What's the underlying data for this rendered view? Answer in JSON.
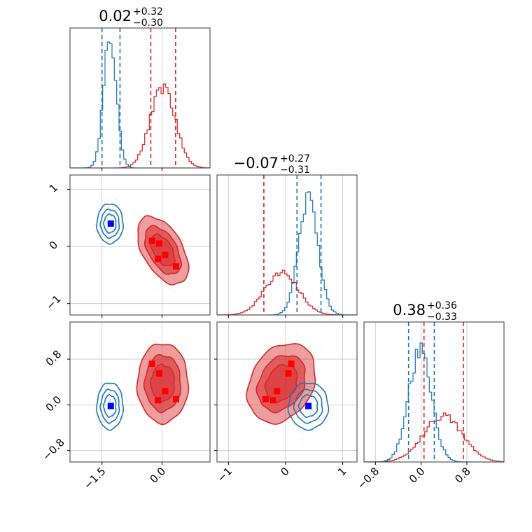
{
  "colors": {
    "series_a": "#d62728",
    "series_b": "#1f77b4",
    "marker_a": "#ff0000",
    "marker_b": "#0000ff"
  },
  "chart_data": {
    "type": "corner",
    "parameters": 3,
    "titles": [
      {
        "center": "0.02",
        "upper": "+0.32",
        "lower": "−0.30"
      },
      {
        "center": "−0.07",
        "upper": "+0.27",
        "lower": "−0.31"
      },
      {
        "center": "0.38",
        "upper": "+0.36",
        "lower": "−0.33"
      }
    ],
    "axes": [
      {
        "lim": [
          -2.3,
          1.2
        ],
        "ticks": [
          -1.5,
          0.0
        ],
        "tick_labels": [
          "−1.5",
          "0.0"
        ]
      },
      {
        "lim": [
          -1.2,
          1.25
        ],
        "ticks": [
          -1,
          0,
          1
        ],
        "tick_labels": [
          "−1",
          "0",
          "1"
        ]
      },
      {
        "lim": [
          -1.0,
          1.45
        ],
        "ticks": [
          -0.8,
          0.0,
          0.8
        ],
        "tick_labels": [
          "−0.8",
          "0.0",
          "0.8"
        ]
      }
    ],
    "grid": true,
    "series": [
      {
        "color": "#d62728",
        "means": [
          0.02,
          -0.07,
          0.38
        ],
        "stds": [
          0.31,
          0.29,
          0.34
        ],
        "quantile_lines": [
          [
            -0.28,
            0.34
          ],
          [
            -0.38,
            0.2
          ],
          [
            0.05,
            0.74
          ]
        ],
        "rho": [
          [
            1,
            -0.5,
            0.0
          ],
          [
            -0.5,
            1,
            0.25
          ],
          [
            0.0,
            0.25,
            1
          ]
        ],
        "markers": [
          [
            -0.25,
            0.1,
            0.72
          ],
          [
            -0.07,
            0.05,
            0.55
          ],
          [
            0.08,
            -0.15,
            0.24
          ],
          [
            0.35,
            -0.35,
            0.1
          ],
          [
            -0.1,
            -0.22,
            0.08
          ]
        ]
      },
      {
        "color": "#1f77b4",
        "means": [
          -1.3,
          0.4,
          -0.02
        ],
        "stds": [
          0.16,
          0.17,
          0.2
        ],
        "quantile_lines": [
          [
            -1.5,
            -1.05
          ],
          [
            0.2,
            0.62
          ],
          [
            -0.22,
            0.23
          ]
        ],
        "rho": [
          [
            1,
            0,
            0
          ],
          [
            0,
            1,
            0
          ],
          [
            0,
            0,
            1
          ]
        ],
        "markers": [
          [
            -1.28,
            0.4,
            -0.02
          ]
        ]
      }
    ]
  }
}
